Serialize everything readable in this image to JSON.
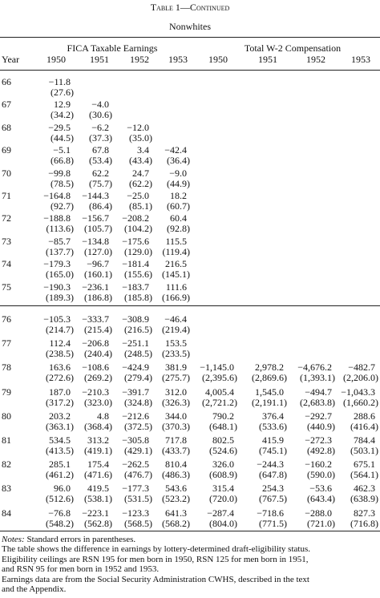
{
  "header": {
    "title": "Table 1—Continued",
    "subtitle": "Nonwhites",
    "year_label": "Year",
    "groups": [
      "FICA Taxable Earnings",
      "Total W-2 Compensation"
    ],
    "columns": [
      "1950",
      "1951",
      "1952",
      "1953",
      "1950",
      "1951",
      "1952",
      "1953"
    ]
  },
  "table": {
    "rows": [
      {
        "year": "66",
        "estimates": [
          "−11.8",
          null,
          null,
          null,
          null,
          null,
          null,
          null
        ],
        "errors": [
          "(27.6)",
          null,
          null,
          null,
          null,
          null,
          null,
          null
        ]
      },
      {
        "year": "67",
        "estimates": [
          "12.9",
          "−4.0",
          null,
          null,
          null,
          null,
          null,
          null
        ],
        "errors": [
          "(34.2)",
          "(30.6)",
          null,
          null,
          null,
          null,
          null,
          null
        ]
      },
      {
        "year": "68",
        "estimates": [
          "−29.5",
          "−6.2",
          "−12.0",
          null,
          null,
          null,
          null,
          null
        ],
        "errors": [
          "(44.5)",
          "(37.3)",
          "(35.0)",
          null,
          null,
          null,
          null,
          null
        ]
      },
      {
        "year": "69",
        "estimates": [
          "−5.1",
          "67.8",
          "3.4",
          "−42.4",
          null,
          null,
          null,
          null
        ],
        "errors": [
          "(66.8)",
          "(53.4)",
          "(43.4)",
          "(36.4)",
          null,
          null,
          null,
          null
        ]
      },
      {
        "year": "70",
        "estimates": [
          "−99.8",
          "62.2",
          "24.7",
          "−9.0",
          null,
          null,
          null,
          null
        ],
        "errors": [
          "(78.5)",
          "(75.7)",
          "(62.2)",
          "(44.9)",
          null,
          null,
          null,
          null
        ]
      },
      {
        "year": "71",
        "estimates": [
          "−164.8",
          "−144.3",
          "−25.0",
          "18.2",
          null,
          null,
          null,
          null
        ],
        "errors": [
          "(92.7)",
          "(86.4)",
          "(85.1)",
          "(60.7)",
          null,
          null,
          null,
          null
        ]
      },
      {
        "year": "72",
        "estimates": [
          "−188.8",
          "−156.7",
          "−208.2",
          "60.4",
          null,
          null,
          null,
          null
        ],
        "errors": [
          "(113.6)",
          "(105.7)",
          "(104.2)",
          "(92.8)",
          null,
          null,
          null,
          null
        ]
      },
      {
        "year": "73",
        "estimates": [
          "−85.7",
          "−134.8",
          "−175.6",
          "115.5",
          null,
          null,
          null,
          null
        ],
        "errors": [
          "(137.7)",
          "(127.0)",
          "(129.0)",
          "(119.4)",
          null,
          null,
          null,
          null
        ]
      },
      {
        "year": "74",
        "estimates": [
          "−179.3",
          "−96.7",
          "−181.4",
          "216.5",
          null,
          null,
          null,
          null
        ],
        "errors": [
          "(165.0)",
          "(160.1)",
          "(155.6)",
          "(145.1)",
          null,
          null,
          null,
          null
        ]
      },
      {
        "year": "75",
        "estimates": [
          "−190.3",
          "−236.1",
          "−183.7",
          "111.6",
          null,
          null,
          null,
          null
        ],
        "errors": [
          "(189.3)",
          "(186.8)",
          "(185.8)",
          "(166.9)",
          null,
          null,
          null,
          null
        ]
      },
      {
        "year": "76",
        "estimates": [
          "−105.3",
          "−333.7",
          "−308.9",
          "−46.4",
          null,
          null,
          null,
          null
        ],
        "errors": [
          "(214.7)",
          "(215.4)",
          "(216.5)",
          "(219.4)",
          null,
          null,
          null,
          null
        ]
      },
      {
        "year": "77",
        "estimates": [
          "112.4",
          "−206.8",
          "−251.1",
          "153.5",
          null,
          null,
          null,
          null
        ],
        "errors": [
          "(238.5)",
          "(240.4)",
          "(248.5)",
          "(233.5)",
          null,
          null,
          null,
          null
        ]
      },
      {
        "year": "78",
        "estimates": [
          "163.6",
          "−108.6",
          "−424.9",
          "381.9",
          "−1,145.0",
          "2,978.2",
          "−4,676.2",
          "−482.7"
        ],
        "errors": [
          "(272.6)",
          "(269.2)",
          "(279.4)",
          "(275.7)",
          "(2,395.6)",
          "(2,869.6)",
          "(1,393.1)",
          "(2,206.0)"
        ]
      },
      {
        "year": "79",
        "estimates": [
          "187.0",
          "−210.3",
          "−391.7",
          "312.0",
          "4,005.4",
          "1,545.0",
          "−494.7",
          "−1,043.3"
        ],
        "errors": [
          "(317.2)",
          "(323.0)",
          "(324.8)",
          "(326.3)",
          "(2,721.2)",
          "(2,191.1)",
          "(2,683.8)",
          "(1,660.2)"
        ]
      },
      {
        "year": "80",
        "estimates": [
          "203.2",
          "4.8",
          "−212.6",
          "344.0",
          "790.2",
          "376.4",
          "−292.7",
          "288.6"
        ],
        "errors": [
          "(363.1)",
          "(368.4)",
          "(372.5)",
          "(370.3)",
          "(648.1)",
          "(533.6)",
          "(440.9)",
          "(416.4)"
        ]
      },
      {
        "year": "81",
        "estimates": [
          "534.5",
          "313.2",
          "−305.8",
          "717.8",
          "802.5",
          "415.9",
          "−272.3",
          "784.4"
        ],
        "errors": [
          "(413.5)",
          "(419.1)",
          "(429.1)",
          "(433.7)",
          "(524.6)",
          "(745.1)",
          "(492.8)",
          "(503.1)"
        ]
      },
      {
        "year": "82",
        "estimates": [
          "285.1",
          "175.4",
          "−262.5",
          "810.4",
          "326.0",
          "−244.3",
          "−160.2",
          "675.1"
        ],
        "errors": [
          "(461.2)",
          "(471.6)",
          "(476.7)",
          "(486.3)",
          "(608.9)",
          "(647.8)",
          "(590.0)",
          "(564.1)"
        ]
      },
      {
        "year": "83",
        "estimates": [
          "96.0",
          "419.5",
          "−177.3",
          "543.6",
          "315.4",
          "254.3",
          "−53.6",
          "462.3"
        ],
        "errors": [
          "(512.6)",
          "(538.1)",
          "(531.5)",
          "(523.2)",
          "(720.0)",
          "(767.5)",
          "(643.4)",
          "(638.9)"
        ]
      },
      {
        "year": "84",
        "estimates": [
          "−76.8",
          "−223.1",
          "−123.3",
          "641.3",
          "−287.4",
          "−718.6",
          "−288.0",
          "827.3"
        ],
        "errors": [
          "(548.2)",
          "(562.8)",
          "(568.5)",
          "(568.2)",
          "(804.0)",
          "(771.5)",
          "(721.0)",
          "(716.8)"
        ]
      }
    ]
  },
  "notes": {
    "label": "Notes:",
    "lines": [
      "Standard errors in parentheses.",
      "The table shows the difference in earnings by lottery-determined draft-eligibility status.",
      "Eligibility ceilings are RSN 195 for men born in 1950, RSN 125 for men born in 1951,",
      "and RSN 95 for men born in 1952 and 1953.",
      "Earnings data are from the Social Security Administration CWHS, described in the text",
      "and the Appendix."
    ]
  }
}
